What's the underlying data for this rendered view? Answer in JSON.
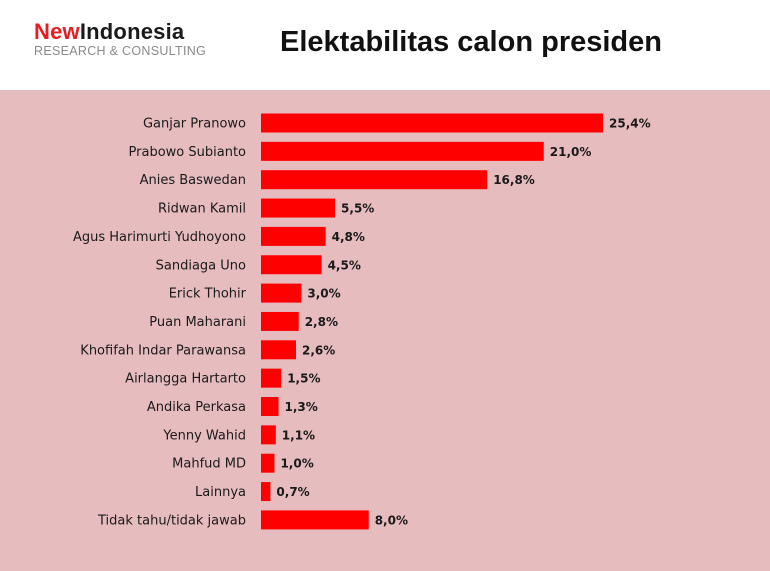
{
  "header": {
    "logo_new": "New",
    "logo_indonesia": "Indonesia",
    "logo_subtitle": "RESEARCH & CONSULTING",
    "title": "Elektabilitas calon presiden"
  },
  "colors": {
    "bar": "#ff0000",
    "plot_background": "#e6bcbf",
    "brand_red": "#e41e1e"
  },
  "chart_data": {
    "type": "bar",
    "orientation": "horizontal",
    "title": "Elektabilitas calon presiden",
    "xlabel": "",
    "ylabel": "",
    "categories": [
      "Ganjar Pranowo",
      "Prabowo Subianto",
      "Anies Baswedan",
      "Ridwan Kamil",
      "Agus Harimurti Yudhoyono",
      "Sandiaga Uno",
      "Erick Thohir",
      "Puan Maharani",
      "Khofifah Indar Parawansa",
      "Airlangga Hartarto",
      "Andika Perkasa",
      "Yenny Wahid",
      "Mahfud MD",
      "Lainnya",
      "Tidak tahu/tidak jawab"
    ],
    "values": [
      25.4,
      21.0,
      16.8,
      5.5,
      4.8,
      4.5,
      3.0,
      2.8,
      2.6,
      1.5,
      1.3,
      1.1,
      1.0,
      0.7,
      8.0
    ],
    "value_labels": [
      "25,4%",
      "21,0%",
      "16,8%",
      "5,5%",
      "4,8%",
      "4,5%",
      "3,0%",
      "2,8%",
      "2,6%",
      "1,5%",
      "1,3%",
      "1,1%",
      "1,0%",
      "0,7%",
      "8,0%"
    ],
    "xlim": [
      0,
      25.4
    ],
    "grid": false,
    "legend": "none"
  }
}
